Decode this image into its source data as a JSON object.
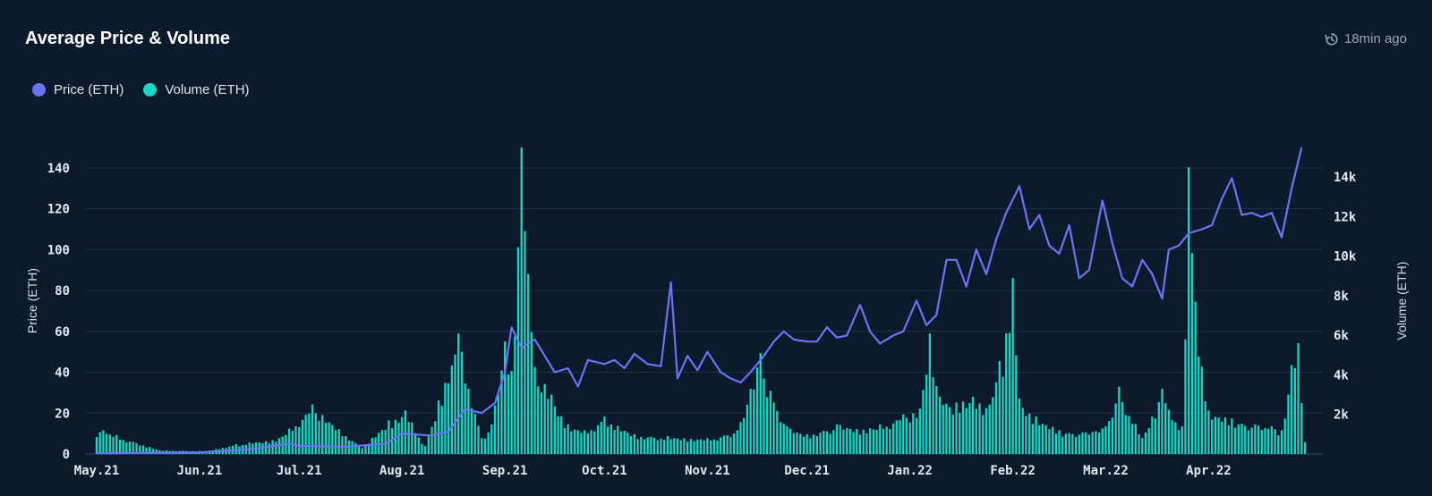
{
  "header": {
    "title": "Average Price & Volume",
    "updated": "18min ago",
    "refresh_icon": "refresh-clock-icon"
  },
  "colors": {
    "background": "#0c1a2b",
    "price": "#6a74f4",
    "volume": "#18d6c4",
    "grid": "#17344a"
  },
  "chart_data": {
    "type": "bar",
    "title": "Average Price & Volume",
    "legend_position": "top-left",
    "grid": true,
    "series": [
      {
        "name": "Price (ETH)",
        "type": "line",
        "axis": "left",
        "color": "#6a74f4",
        "x": [
          "2021-05-01",
          "2021-05-15",
          "2021-06-01",
          "2021-06-15",
          "2021-06-28",
          "2021-07-01",
          "2021-07-15",
          "2021-07-27",
          "2021-08-01",
          "2021-08-10",
          "2021-08-15",
          "2021-08-20",
          "2021-08-25",
          "2021-08-29",
          "2021-09-01",
          "2021-09-03",
          "2021-09-06",
          "2021-09-10",
          "2021-09-13",
          "2021-09-16",
          "2021-09-20",
          "2021-09-23",
          "2021-09-26",
          "2021-10-01",
          "2021-10-04",
          "2021-10-07",
          "2021-10-10",
          "2021-10-14",
          "2021-10-18",
          "2021-10-21",
          "2021-10-23",
          "2021-10-26",
          "2021-10-29",
          "2021-11-01",
          "2021-11-05",
          "2021-11-08",
          "2021-11-11",
          "2021-11-14",
          "2021-11-18",
          "2021-11-21",
          "2021-11-24",
          "2021-11-27",
          "2021-12-01",
          "2021-12-04",
          "2021-12-07",
          "2021-12-10",
          "2021-12-13",
          "2021-12-17",
          "2021-12-20",
          "2021-12-23",
          "2021-12-27",
          "2021-12-30",
          "2022-01-03",
          "2022-01-06",
          "2022-01-09",
          "2022-01-12",
          "2022-01-15",
          "2022-01-18",
          "2022-01-21",
          "2022-01-24",
          "2022-01-27",
          "2022-01-30",
          "2022-02-03",
          "2022-02-06",
          "2022-02-09",
          "2022-02-12",
          "2022-02-15",
          "2022-02-18",
          "2022-02-21",
          "2022-02-24",
          "2022-02-28",
          "2022-03-03",
          "2022-03-06",
          "2022-03-09",
          "2022-03-12",
          "2022-03-15",
          "2022-03-18",
          "2022-03-20",
          "2022-03-23",
          "2022-03-26",
          "2022-03-30",
          "2022-04-02",
          "2022-04-05",
          "2022-04-08",
          "2022-04-11",
          "2022-04-14",
          "2022-04-17",
          "2022-04-20",
          "2022-04-23",
          "2022-04-26",
          "2022-04-29"
        ],
        "values": [
          0.3,
          0.5,
          0.8,
          2,
          5,
          4,
          3.5,
          5,
          10,
          9,
          11,
          22,
          20,
          25,
          40,
          62,
          52,
          56,
          48,
          40,
          42,
          33,
          46,
          44,
          46,
          42,
          49,
          44,
          43,
          84,
          37,
          48,
          41,
          50,
          40,
          37,
          35,
          40,
          48,
          55,
          60,
          56,
          55,
          55,
          62,
          57,
          58,
          73,
          60,
          54,
          58,
          60,
          75,
          63,
          68,
          95,
          95,
          82,
          100,
          88,
          105,
          118,
          131,
          110,
          117,
          102,
          98,
          112,
          86,
          90,
          124,
          103,
          86,
          82,
          95,
          88,
          76,
          100,
          102,
          108,
          110,
          112,
          125,
          135,
          117,
          118,
          116,
          118,
          106,
          130,
          150
        ]
      },
      {
        "name": "Volume (ETH)",
        "type": "bar",
        "axis": "right",
        "color": "#18d6c4",
        "x": [
          "2021-05-03",
          "2021-05-20",
          "2021-06-03",
          "2021-06-12",
          "2021-06-25",
          "2021-07-05",
          "2021-07-20",
          "2021-07-28",
          "2021-08-02",
          "2021-08-08",
          "2021-08-12",
          "2021-08-18",
          "2021-08-25",
          "2021-08-28",
          "2021-09-01",
          "2021-09-03",
          "2021-09-06",
          "2021-09-10",
          "2021-09-15",
          "2021-09-20",
          "2021-09-25",
          "2021-10-01",
          "2021-10-10",
          "2021-10-20",
          "2021-11-01",
          "2021-11-10",
          "2021-11-14",
          "2021-11-17",
          "2021-11-20",
          "2021-11-25",
          "2021-12-01",
          "2021-12-10",
          "2021-12-20",
          "2021-12-30",
          "2022-01-04",
          "2022-01-07",
          "2022-01-10",
          "2022-01-15",
          "2022-01-20",
          "2022-01-25",
          "2022-01-28",
          "2022-01-30",
          "2022-02-01",
          "2022-02-03",
          "2022-02-08",
          "2022-02-15",
          "2022-02-22",
          "2022-03-01",
          "2022-03-05",
          "2022-03-12",
          "2022-03-18",
          "2022-03-22",
          "2022-03-24",
          "2022-03-26",
          "2022-03-28",
          "2022-04-01",
          "2022-04-08",
          "2022-04-15",
          "2022-04-20",
          "2022-04-23",
          "2022-04-26",
          "2022-04-28",
          "2022-04-30"
        ],
        "values": [
          1200,
          200,
          150,
          500,
          800,
          2500,
          300,
          1700,
          2200,
          400,
          2700,
          6100,
          800,
          1500,
          5700,
          4200,
          15500,
          4400,
          3000,
          1500,
          1200,
          1900,
          1000,
          900,
          800,
          1200,
          3300,
          5100,
          3200,
          1400,
          1000,
          1500,
          1300,
          2000,
          2300,
          6100,
          2900,
          2600,
          2900,
          2500,
          4700,
          6100,
          8900,
          2800,
          1900,
          1200,
          1100,
          1400,
          3400,
          800,
          3300,
          1600,
          1400,
          14500,
          7700,
          2200,
          1800,
          1500,
          1400,
          1200,
          4500,
          5600,
          600
        ]
      }
    ],
    "left_axis": {
      "label": "Price (ETH)",
      "ylim": [
        0,
        150
      ],
      "ticks": [
        "0",
        "20",
        "40",
        "60",
        "80",
        "100",
        "120",
        "140"
      ]
    },
    "right_axis": {
      "label": "Volume (ETH)",
      "ylim": [
        0,
        15500
      ],
      "ticks": [
        "2k",
        "4k",
        "6k",
        "8k",
        "10k",
        "12k",
        "14k"
      ]
    },
    "x_axis": {
      "label": "",
      "xlim": [
        "2021-05-01",
        "2022-04-30"
      ],
      "ticks": [
        "May.21",
        "Jun.21",
        "Jul.21",
        "Aug.21",
        "Sep.21",
        "Oct.21",
        "Nov.21",
        "Dec.21",
        "Jan.22",
        "Feb.22",
        "Mar.22",
        "Apr.22"
      ]
    }
  }
}
